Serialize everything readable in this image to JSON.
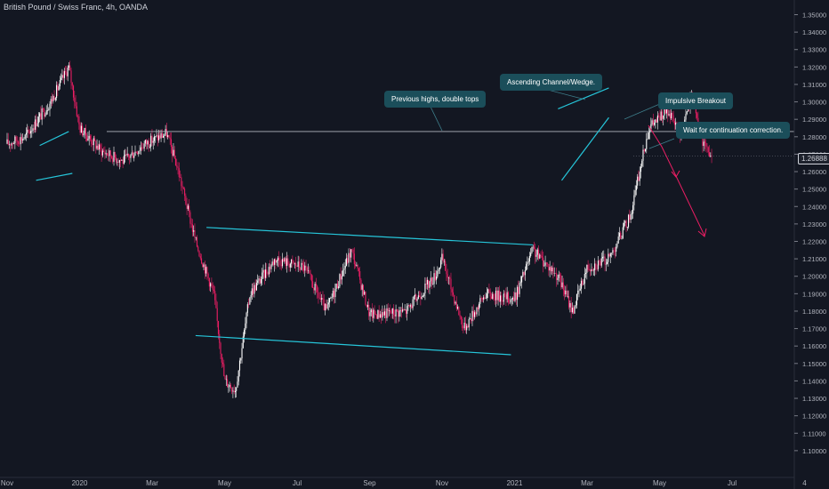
{
  "header": {
    "title": "British Pound / Swiss Franc, 4h, OANDA"
  },
  "annotations": {
    "previous_highs": "Previous highs, double tops",
    "ascending_channel": "Ascending Channel/Wedge.",
    "impulsive_breakout": "Impulsive Breakout",
    "continuation": "Wait for continuation correction."
  },
  "colors": {
    "background": "#131722",
    "candle_up": "#ffffff",
    "candle_down": "#e91e63",
    "trendline": "#26c6da",
    "arrow": "#e91e63",
    "level_line": "#b2b5be",
    "annotation_bg": "#1b4e5a"
  },
  "chart_data": {
    "type": "candlestick",
    "instrument": "British Pound / Swiss Franc",
    "timeframe": "4h",
    "source": "OANDA",
    "ylim": [
      1.09,
      1.36
    ],
    "y_ticks": [
      "1.35000",
      "1.34000",
      "1.33000",
      "1.32000",
      "1.31000",
      "1.30000",
      "1.29000",
      "1.28000",
      "1.27000",
      "1.26000",
      "1.25000",
      "1.24000",
      "1.23000",
      "1.22000",
      "1.21000",
      "1.20000",
      "1.19000",
      "1.18000",
      "1.17000",
      "1.16000",
      "1.15000",
      "1.14000",
      "1.13000",
      "1.12000",
      "1.11000",
      "1.10000"
    ],
    "x_ticks": [
      "Nov",
      "2020",
      "Mar",
      "May",
      "Jul",
      "Sep",
      "Nov",
      "2021",
      "Mar",
      "May",
      "Jul",
      "4"
    ],
    "current_price": "1.26888",
    "price_path": [
      {
        "t": 0,
        "p": 1.276
      },
      {
        "t": 0.25,
        "p": 1.28
      },
      {
        "t": 0.6,
        "p": 1.3
      },
      {
        "t": 0.85,
        "p": 1.32
      },
      {
        "t": 1.0,
        "p": 1.285
      },
      {
        "t": 1.3,
        "p": 1.272
      },
      {
        "t": 1.6,
        "p": 1.266
      },
      {
        "t": 1.9,
        "p": 1.276
      },
      {
        "t": 2.2,
        "p": 1.282
      },
      {
        "t": 2.35,
        "p": 1.262
      },
      {
        "t": 2.6,
        "p": 1.22
      },
      {
        "t": 2.85,
        "p": 1.19
      },
      {
        "t": 3.0,
        "p": 1.14
      },
      {
        "t": 3.15,
        "p": 1.135
      },
      {
        "t": 3.35,
        "p": 1.19
      },
      {
        "t": 3.7,
        "p": 1.21
      },
      {
        "t": 4.1,
        "p": 1.205
      },
      {
        "t": 4.4,
        "p": 1.18
      },
      {
        "t": 4.75,
        "p": 1.215
      },
      {
        "t": 5.0,
        "p": 1.178
      },
      {
        "t": 5.5,
        "p": 1.18
      },
      {
        "t": 5.9,
        "p": 1.2
      },
      {
        "t": 6.0,
        "p": 1.21
      },
      {
        "t": 6.3,
        "p": 1.17
      },
      {
        "t": 6.6,
        "p": 1.19
      },
      {
        "t": 7.0,
        "p": 1.187
      },
      {
        "t": 7.25,
        "p": 1.215
      },
      {
        "t": 7.6,
        "p": 1.2
      },
      {
        "t": 7.8,
        "p": 1.18
      },
      {
        "t": 8.0,
        "p": 1.205
      },
      {
        "t": 8.3,
        "p": 1.21
      },
      {
        "t": 8.6,
        "p": 1.235
      },
      {
        "t": 8.85,
        "p": 1.285
      },
      {
        "t": 9.1,
        "p": 1.295
      },
      {
        "t": 9.3,
        "p": 1.28
      },
      {
        "t": 9.45,
        "p": 1.305
      },
      {
        "t": 9.6,
        "p": 1.275
      },
      {
        "t": 9.72,
        "p": 1.269
      }
    ],
    "horizontal_level": 1.283,
    "trendlines": [
      {
        "name": "pre-2020-flag-top",
        "t1": 0.45,
        "p1": 1.275,
        "t2": 0.85,
        "p2": 1.283
      },
      {
        "name": "pre-2020-flag-bottom",
        "t1": 0.4,
        "p1": 1.255,
        "t2": 0.9,
        "p2": 1.259
      },
      {
        "name": "range-top",
        "t1": 2.75,
        "p1": 1.228,
        "t2": 7.25,
        "p2": 1.218
      },
      {
        "name": "range-bottom",
        "t1": 2.6,
        "p1": 1.166,
        "t2": 6.95,
        "p2": 1.155
      },
      {
        "name": "wedge-top",
        "t1": 7.6,
        "p1": 1.296,
        "t2": 8.3,
        "p2": 1.308
      },
      {
        "name": "wedge-bottom",
        "t1": 7.65,
        "p1": 1.255,
        "t2": 8.3,
        "p2": 1.291
      }
    ],
    "projection_arrows": [
      {
        "t1": 8.55,
        "p1": 1.287,
        "t2": 8.95,
        "p2": 1.229
      }
    ]
  }
}
